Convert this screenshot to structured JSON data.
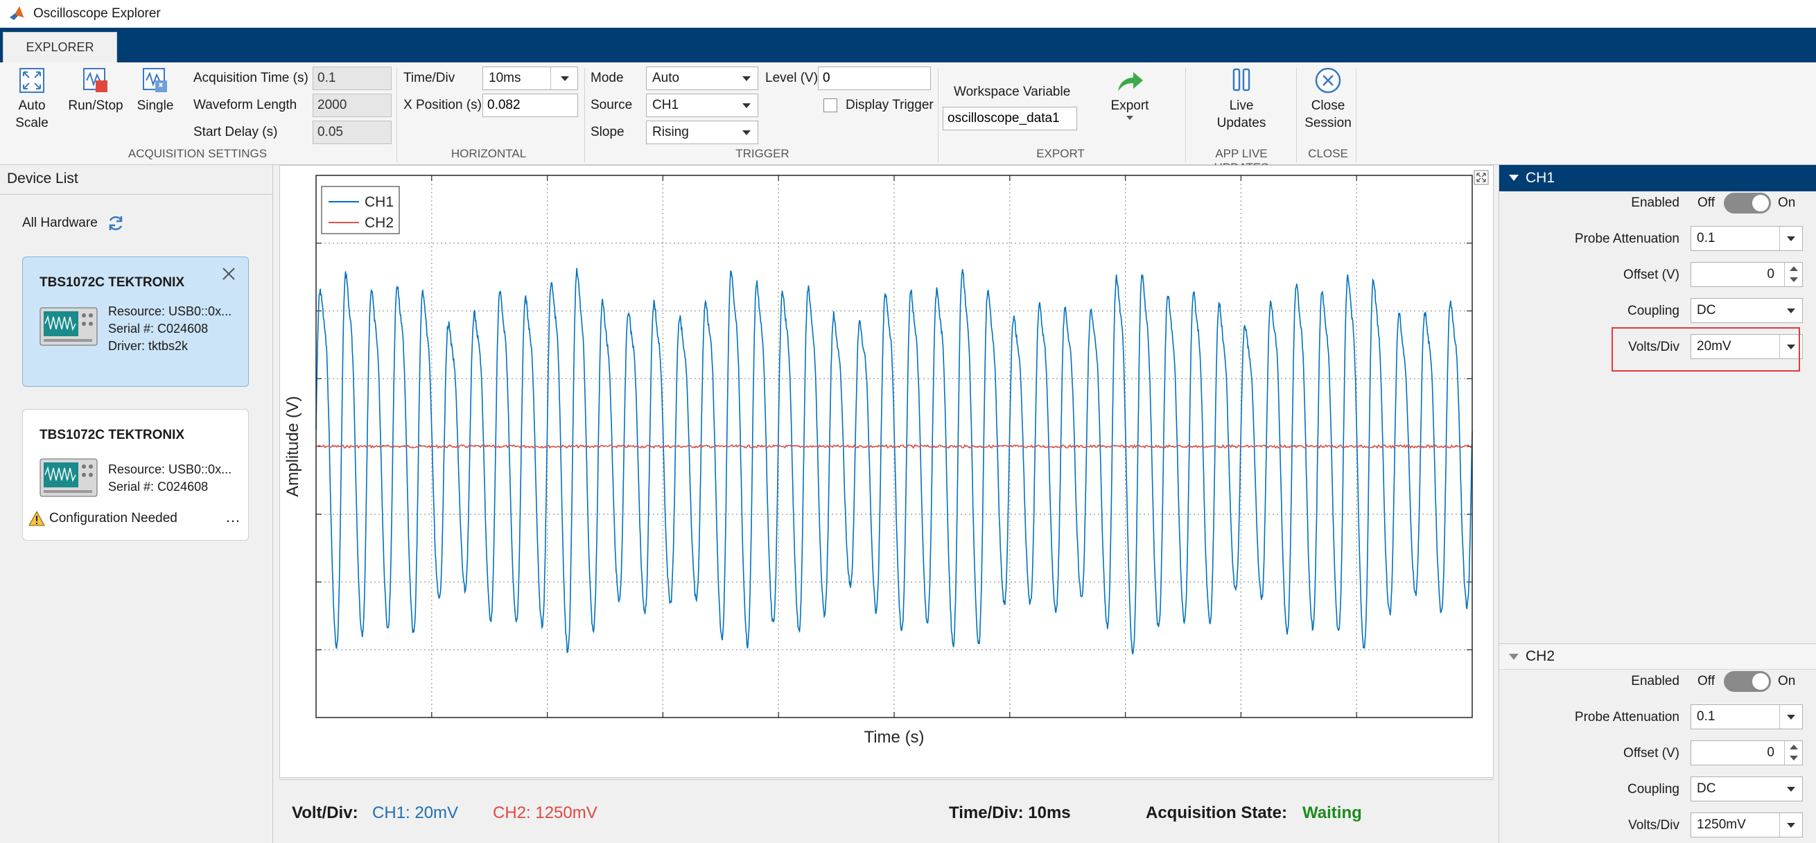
{
  "window": {
    "title": "Oscilloscope Explorer"
  },
  "tabs": [
    {
      "label": "EXPLORER"
    }
  ],
  "toolstrip": {
    "acquisition": {
      "auto_scale": "Auto\nScale",
      "auto_scale_l1": "Auto",
      "auto_scale_l2": "Scale",
      "run_stop": "Run/Stop",
      "single": "Single",
      "acq_time_label": "Acquisition Time (s)",
      "acq_time_value": "0.1",
      "waveform_length_label": "Waveform Length",
      "waveform_length_value": "2000",
      "start_delay_label": "Start Delay (s)",
      "start_delay_value": "0.05",
      "section": "ACQUISITION SETTINGS"
    },
    "horizontal": {
      "time_div_label": "Time/Div",
      "time_div_value": "10ms",
      "x_position_label": "X Position (s)",
      "x_position_value": "0.082",
      "section": "HORIZONTAL"
    },
    "trigger": {
      "mode_label": "Mode",
      "mode_value": "Auto",
      "source_label": "Source",
      "source_value": "CH1",
      "slope_label": "Slope",
      "slope_value": "Rising",
      "level_label": "Level (V)",
      "level_value": "0",
      "display_trigger_label": "Display Trigger",
      "display_trigger_checked": false,
      "section": "TRIGGER"
    },
    "export": {
      "workspace_label": "Workspace Variable",
      "workspace_value": "oscilloscope_data1",
      "export_label": "Export",
      "section": "EXPORT"
    },
    "live": {
      "label_l1": "Live",
      "label_l2": "Updates",
      "section": "APP LIVE UPDATES"
    },
    "close": {
      "label_l1": "Close",
      "label_l2": "Session",
      "section": "CLOSE"
    }
  },
  "device_list": {
    "title": "Device List",
    "all_hardware": "All Hardware",
    "devices": [
      {
        "name": "TBS1072C TEKTRONIX",
        "resource": "Resource: USB0::0x...",
        "serial": "Serial #: C024608",
        "driver": "Driver: tktbs2k",
        "selected": true
      },
      {
        "name": "TBS1072C TEKTRONIX",
        "resource": "Resource: USB0::0x...",
        "serial": "Serial #: C024608",
        "warning": "Configuration Needed",
        "more": "…"
      }
    ]
  },
  "plot": {
    "ylabel": "Amplitude (V)",
    "xlabel": "Time (s)",
    "legend": [
      "CH1",
      "CH2"
    ]
  },
  "chart_data": {
    "type": "line",
    "title": "",
    "xlabel": "Time (s)",
    "ylabel": "Amplitude (V)",
    "grid": true,
    "legend_position": "top-left",
    "series": [
      {
        "name": "CH1",
        "color": "#0072bd",
        "cycles": 45,
        "amplitude_divs": 2.9,
        "waveform": "periodic oscillation, roughly symmetric about zero"
      },
      {
        "name": "CH2",
        "color": "#d9534f",
        "constant_value": 0,
        "waveform": "flat near zero with small noise"
      }
    ],
    "x_divisions": 10,
    "y_divisions": 8
  },
  "status": {
    "volt_div_label": "Volt/Div:",
    "ch1": "CH1: 20mV",
    "ch2": "CH2: 1250mV",
    "time_div": "Time/Div: 10ms",
    "acq_state_label": "Acquisition State:",
    "acq_state_value": "Waiting",
    "colors": {
      "ch1": "#1f6fb5",
      "ch2": "#e0483e",
      "waiting": "#1e8b1e"
    }
  },
  "channels": [
    {
      "name": "CH1",
      "expanded": true,
      "enabled_label": "Enabled",
      "off_label": "Off",
      "on_label": "On",
      "probe_label": "Probe Attenuation",
      "probe_value": "0.1",
      "offset_label": "Offset (V)",
      "offset_value": "0",
      "coupling_label": "Coupling",
      "coupling_value": "DC",
      "volts_div_label": "Volts/Div",
      "volts_div_value": "20mV"
    },
    {
      "name": "CH2",
      "expanded": true,
      "enabled_label": "Enabled",
      "off_label": "Off",
      "on_label": "On",
      "probe_label": "Probe Attenuation",
      "probe_value": "0.1",
      "offset_label": "Offset (V)",
      "offset_value": "0",
      "coupling_label": "Coupling",
      "coupling_value": "DC",
      "volts_div_label": "Volts/Div",
      "volts_div_value": "1250mV"
    }
  ],
  "accent_colors": {
    "ribbon": "#003d73",
    "highlight": "#e03c3c"
  }
}
